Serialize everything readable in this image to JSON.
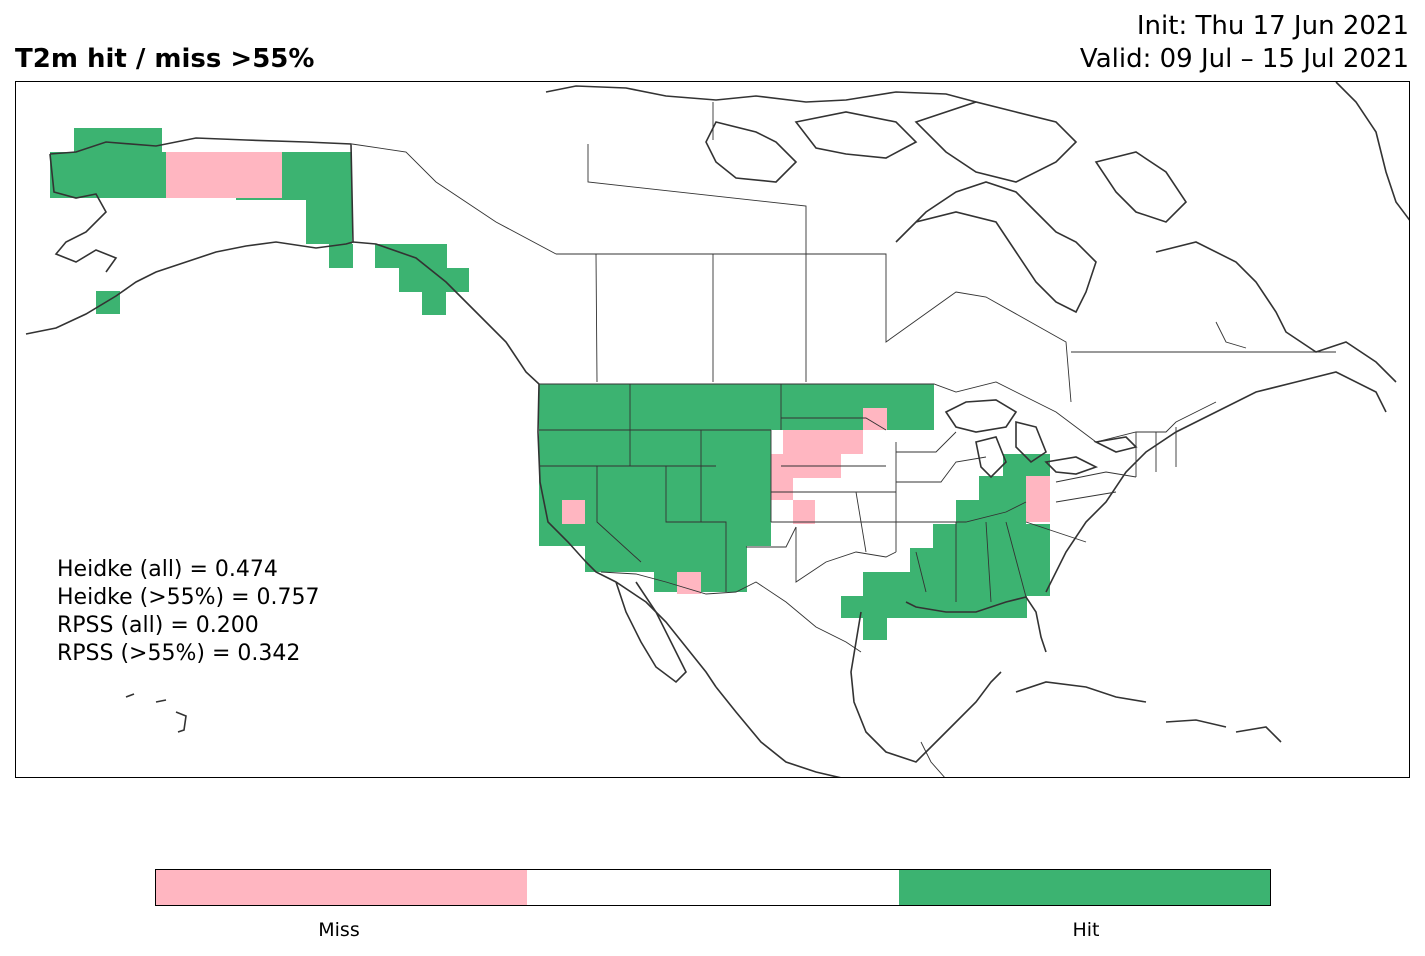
{
  "header": {
    "title": "T2m hit / miss  >55%",
    "init": "Init: Thu 17 Jun 2021",
    "valid": "Valid: 09 Jul – 15 Jul 2021"
  },
  "scores": [
    "Heidke (all) = 0.474",
    "Heidke (>55%) = 0.757",
    "RPSS (all) = 0.200",
    "RPSS (>55%) = 0.342"
  ],
  "colors": {
    "hit": "#3cb371",
    "miss": "#ffb6c1",
    "neutral": "#ffffff",
    "coastline": "#333333"
  },
  "legend": {
    "miss_label": "Miss",
    "hit_label": "Hit"
  }
}
